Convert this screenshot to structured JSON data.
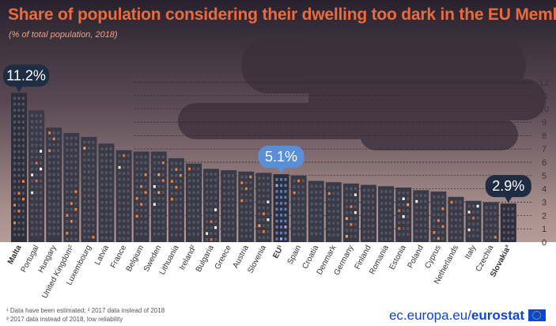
{
  "chart_data": {
    "type": "bar",
    "title": "Share of population considering their dwelling too dark in the EU Member States",
    "subtitle": "(% of total population, 2018)",
    "categories": [
      "Malta",
      "Portugal",
      "Hungary",
      "United Kingdom²",
      "Luxembourg",
      "Latvia",
      "France",
      "Belgium",
      "Sweden",
      "Lithuania",
      "Ireland²",
      "Bulgaria",
      "Greece",
      "Austria",
      "Slovenia",
      "EU¹",
      "Spain",
      "Croatia",
      "Denmark",
      "Germany",
      "Finland",
      "Romania",
      "Estonia",
      "Poland",
      "Cyprus",
      "Netherlands",
      "Italy",
      "Czechia",
      "Slovakia³"
    ],
    "values": [
      11.2,
      9.9,
      8.6,
      8.2,
      7.9,
      7.4,
      6.9,
      6.8,
      6.8,
      6.3,
      5.9,
      5.5,
      5.4,
      5.3,
      5.2,
      5.1,
      5.0,
      4.6,
      4.5,
      4.4,
      4.3,
      4.2,
      4.1,
      3.9,
      3.8,
      3.4,
      3.1,
      3.0,
      2.9
    ],
    "ylim": [
      0,
      12
    ],
    "yticks": [
      0,
      1,
      2,
      3,
      4,
      5,
      6,
      7,
      8,
      9,
      10,
      11,
      12
    ],
    "grid": true,
    "highlights": [
      {
        "category": "Malta",
        "label": "11.2%"
      },
      {
        "category": "EU¹",
        "label": "5.1%"
      },
      {
        "category": "Slovakia³",
        "label": "2.9%"
      }
    ],
    "bold_categories": [
      "Malta",
      "EU¹",
      "Slovakia³"
    ],
    "xlabel": "",
    "ylabel": ""
  },
  "footnotes": {
    "line1": "¹ Data have been estimated; ² 2017 data instead of 2018",
    "line2": "³ 2017 data instead of 2018, low reliability"
  },
  "branding": {
    "url_prefix": "ec.europa.eu/",
    "name": "eurostat"
  },
  "colors": {
    "title": "#ef6a3a",
    "bar": "#3a3a47",
    "bar_highlight": "#2b2b36",
    "eu_badge": "#5a8fd8",
    "badge_dark": "#1f2d44"
  }
}
